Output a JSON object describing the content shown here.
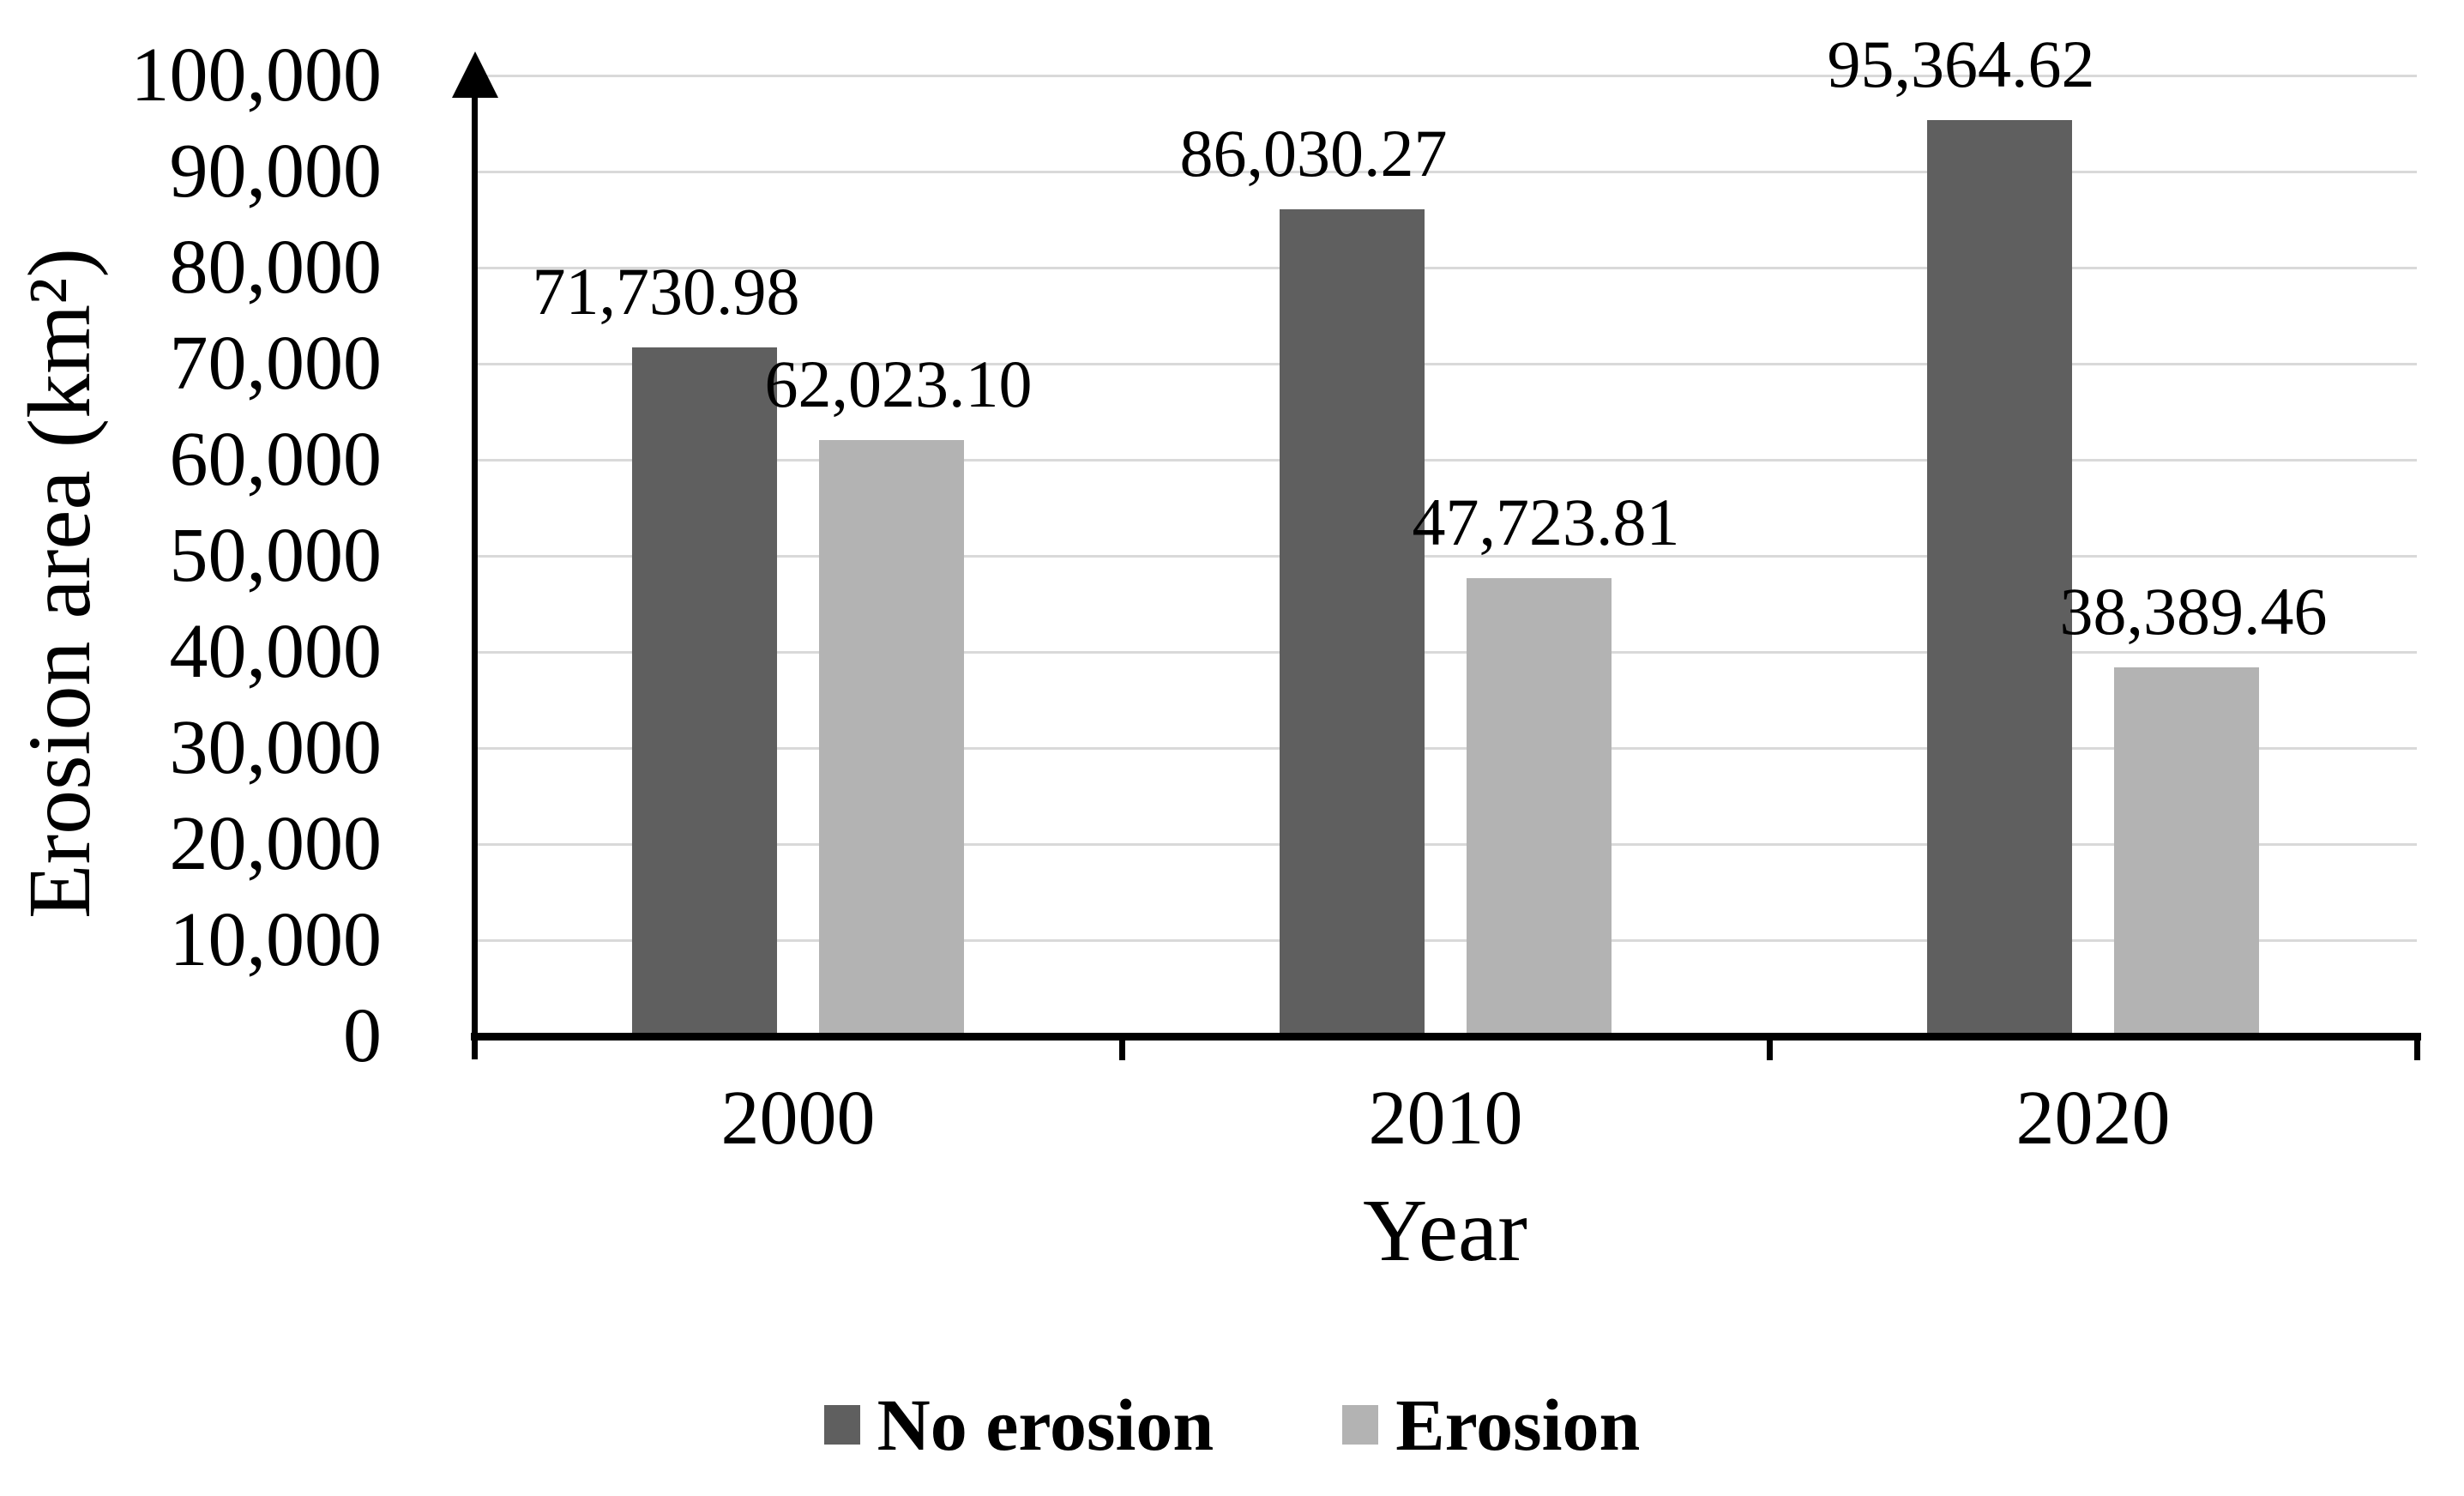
{
  "figure": {
    "background": "#FFFFFF",
    "axis_color": "#000000",
    "gridline_color": "#D9D9D9"
  },
  "chart_data": {
    "type": "bar",
    "title": "",
    "xlabel": "Year",
    "ylabel": "Erosion area (km²)",
    "categories": [
      "2000",
      "2010",
      "2020"
    ],
    "series": [
      {
        "name": "No erosion",
        "color": "#5F5F5F",
        "values": [
          71730.98,
          86030.27,
          95364.62
        ],
        "labels": [
          "71,730.98",
          "86,030.27",
          "95,364.62"
        ]
      },
      {
        "name": "Erosion",
        "color": "#B3B3B3",
        "values": [
          62023.1,
          47723.81,
          38389.46
        ],
        "labels": [
          "62,023.10",
          "47,723.81",
          "38,389.46"
        ]
      }
    ],
    "ylim": [
      0,
      100000
    ],
    "ytick_step": 10000,
    "ytick_labels": [
      "100,000",
      "90,000",
      "80,000",
      "70,000",
      "60,000",
      "50,000",
      "40,000",
      "30,000",
      "20,000",
      "10,000",
      "0"
    ],
    "grid": true,
    "legend_position": "bottom",
    "y_axis_arrow": true
  }
}
